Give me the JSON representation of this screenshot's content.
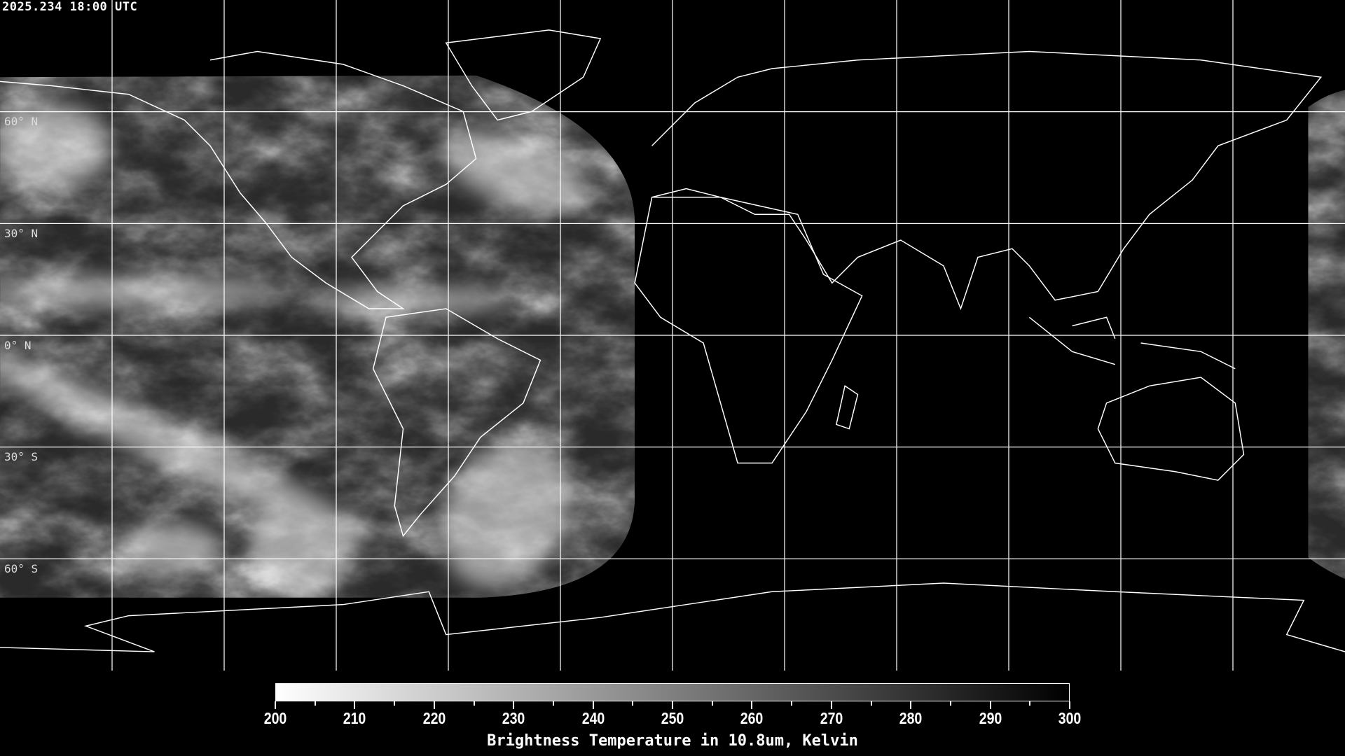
{
  "header": {
    "title": "2025.234 18:00 UTC"
  },
  "map": {
    "projection": "equirectangular",
    "lat_labels": [
      "60° N",
      "30° N",
      "0° N",
      "30° S",
      "60° S"
    ],
    "grid_spacing_deg": 30,
    "coastline_color": "#ffffff",
    "grid_color": "#ffffff"
  },
  "colorbar": {
    "min": 200,
    "max": 300,
    "ticks": [
      "200",
      "210",
      "220",
      "230",
      "240",
      "250",
      "260",
      "270",
      "280",
      "290",
      "300"
    ],
    "colormap": "white-to-black",
    "title": "Brightness Temperature in 10.8um, Kelvin"
  }
}
